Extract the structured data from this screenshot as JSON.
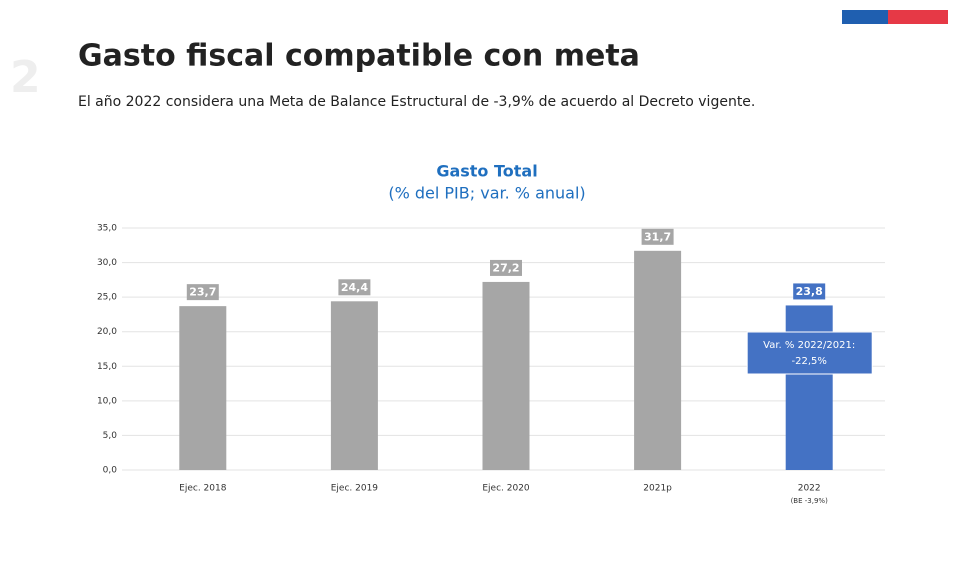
{
  "header": {
    "title": "Gasto fiscal compatible con meta",
    "subtitle": "El año 2022 considera una Meta de Balance Estructural de -3,9% de acuerdo al Decreto vigente."
  },
  "chart_data": {
    "type": "bar",
    "title": "Gasto Total",
    "subtitle": "(% del PIB; var. % anual)",
    "categories": [
      "Ejec. 2018",
      "Ejec. 2019",
      "Ejec. 2020",
      "2021p",
      "2022"
    ],
    "category_notes": [
      null,
      null,
      null,
      null,
      "(BE -3,9%)"
    ],
    "values": [
      23.7,
      24.4,
      27.2,
      31.7,
      23.8
    ],
    "value_labels": [
      "23,7",
      "24,4",
      "27,2",
      "31,7",
      "23,8"
    ],
    "colors": [
      "#a6a6a6",
      "#a6a6a6",
      "#a6a6a6",
      "#a6a6a6",
      "#4472c4"
    ],
    "ylim": [
      0,
      35
    ],
    "yticks": [
      {
        "value": 0,
        "label": "0,0"
      },
      {
        "value": 5,
        "label": "5,0"
      },
      {
        "value": 10,
        "label": "10,0"
      },
      {
        "value": 15,
        "label": "15,0"
      },
      {
        "value": 20,
        "label": "20,0"
      },
      {
        "value": 25,
        "label": "25,0"
      },
      {
        "value": 30,
        "label": "30,0"
      },
      {
        "value": 35,
        "label": "35,0"
      }
    ],
    "grid": true,
    "annotation": [
      "Var. % 2022/2021:",
      "-22,5%"
    ]
  }
}
